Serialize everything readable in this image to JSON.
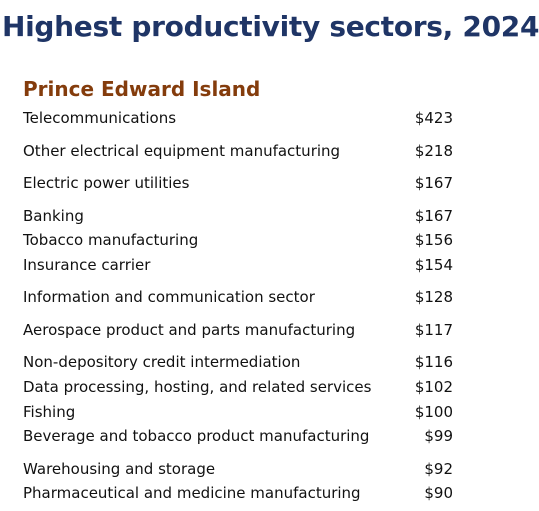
{
  "header": {
    "title": "Highest productivity sectors, 2024",
    "region": "Prince Edward Island"
  },
  "table": {
    "rows": [
      [
        "Telecommunications",
        "$423"
      ],
      [
        "Other electrical equipment manufacturing",
        "$218"
      ],
      [
        "Electric power utilities",
        "$167"
      ],
      [
        "Banking",
        "$167"
      ],
      [
        "Tobacco manufacturing",
        "$156"
      ],
      [
        "Insurance carrier",
        "$154"
      ],
      [
        "Information and communication sector",
        "$128"
      ],
      [
        "Aerospace product and parts manufacturing",
        "$117"
      ],
      [
        "Non-depository credit intermediation",
        "$116"
      ],
      [
        "Data processing, hosting, and related services",
        "$102"
      ],
      [
        "Fishing",
        "$100"
      ],
      [
        "Beverage and tobacco product manufacturing",
        "$99"
      ],
      [
        "Warehousing and storage",
        "$92"
      ],
      [
        "Pharmaceutical and medicine manufacturing",
        "$90"
      ]
    ]
  }
}
